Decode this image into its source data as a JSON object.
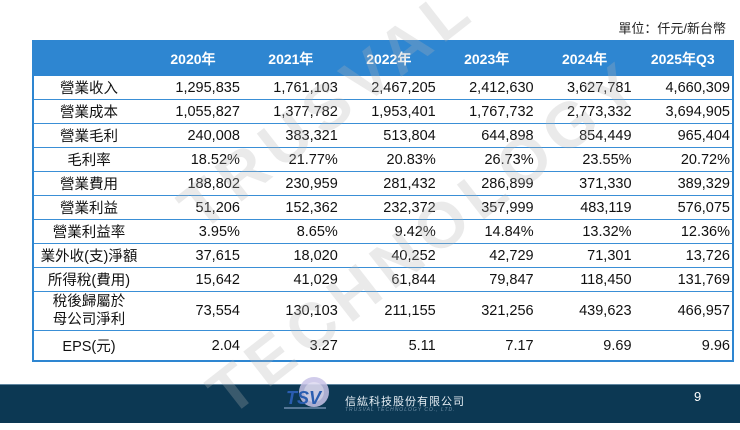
{
  "unit_label": "單位：仟元/新台幣",
  "table": {
    "headers": [
      "",
      "2020年",
      "2021年",
      "2022年",
      "2023年",
      "2024年",
      "2025年Q3"
    ],
    "rows": [
      {
        "label": "營業收入",
        "values": [
          "1,295,835",
          "1,761,103",
          "2,467,205",
          "2,412,630",
          "3,627,781",
          "4,660,309"
        ]
      },
      {
        "label": "營業成本",
        "values": [
          "1,055,827",
          "1,377,782",
          "1,953,401",
          "1,767,732",
          "2,773,332",
          "3,694,905"
        ]
      },
      {
        "label": "營業毛利",
        "values": [
          "240,008",
          "383,321",
          "513,804",
          "644,898",
          "854,449",
          "965,404"
        ]
      },
      {
        "label": "毛利率",
        "values": [
          "18.52%",
          "21.77%",
          "20.83%",
          "26.73%",
          "23.55%",
          "20.72%"
        ]
      },
      {
        "label": "營業費用",
        "values": [
          "188,802",
          "230,959",
          "281,432",
          "286,899",
          "371,330",
          "389,329"
        ]
      },
      {
        "label": "營業利益",
        "values": [
          "51,206",
          "152,362",
          "232,372",
          "357,999",
          "483,119",
          "576,075"
        ]
      },
      {
        "label": "營業利益率",
        "values": [
          "3.95%",
          "8.65%",
          "9.42%",
          "14.84%",
          "13.32%",
          "12.36%"
        ]
      },
      {
        "label": "業外收(支)淨額",
        "values": [
          "37,615",
          "18,020",
          "40,252",
          "42,729",
          "71,301",
          "13,726"
        ]
      },
      {
        "label": "所得稅(費用)",
        "values": [
          "15,642",
          "41,029",
          "61,844",
          "79,847",
          "118,450",
          "131,769"
        ]
      },
      {
        "label": "稅後歸屬於母公司淨利",
        "label_line1": "稅後歸屬於",
        "label_line2": "母公司淨利",
        "values": [
          "73,554",
          "130,103",
          "211,155",
          "321,256",
          "439,623",
          "466,957"
        ]
      },
      {
        "label": "EPS(元)",
        "values": [
          "2.04",
          "3.27",
          "5.11",
          "7.17",
          "9.69",
          "9.96"
        ]
      }
    ]
  },
  "watermark": {
    "line1": "TRUSVAL",
    "line2": "TECHNOLOGY"
  },
  "footer": {
    "logo_text": "TSV",
    "company_name": "信紘科技股份有限公司",
    "company_name_en": "TRUSVAL TECHNOLOGY CO., LTD.",
    "page_number": "9"
  },
  "colors": {
    "header_bg": "#2e86d1",
    "footer_bg": "#0c3853"
  }
}
